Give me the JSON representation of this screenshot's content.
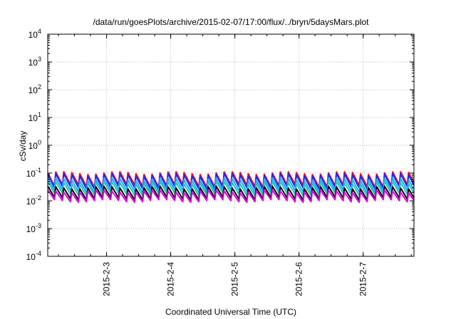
{
  "chart_data": {
    "type": "line",
    "title": "/data/run/goesPlots/archive/2015-02-07/17:00/flux/../bryn/5daysMars.plot",
    "xlabel": "Coordinated Universal Time (UTC)",
    "ylabel": "cSv/day",
    "yscale": "log",
    "ylim": [
      0.0001,
      10000
    ],
    "xlim": [
      "2015-02-02T02:00",
      "2015-02-07T19:00"
    ],
    "x_ticks": [
      "2015-2-3",
      "2015-2-4",
      "2015-2-5",
      "2015-2-6",
      "2015-2-7"
    ],
    "y_ticks": [
      {
        "base": "10",
        "exp": "-4"
      },
      {
        "base": "10",
        "exp": "-3"
      },
      {
        "base": "10",
        "exp": "-2"
      },
      {
        "base": "10",
        "exp": "-1"
      },
      {
        "base": "10",
        "exp": "0"
      },
      {
        "base": "10",
        "exp": "1"
      },
      {
        "base": "10",
        "exp": "2"
      },
      {
        "base": "10",
        "exp": "3"
      },
      {
        "base": "10",
        "exp": "4"
      }
    ],
    "grid": true,
    "x_period_hours": 3,
    "series": [
      {
        "color": "#ff0000",
        "peak": 0.1,
        "trough": 0.028
      },
      {
        "color": "#1a2cff",
        "peak": 0.085,
        "trough": 0.024
      },
      {
        "color": "#2aa4ff",
        "peak": 0.06,
        "trough": 0.018
      },
      {
        "color": "#19c9b9",
        "peak": 0.045,
        "trough": 0.014
      },
      {
        "color": "#000000",
        "peak": 0.03,
        "trough": 0.01
      },
      {
        "color": "#e100e1",
        "peak": 0.022,
        "trough": 0.0085
      }
    ]
  }
}
